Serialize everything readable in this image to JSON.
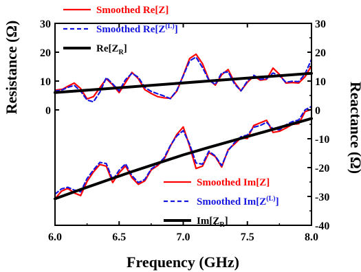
{
  "chart_data": {
    "type": "line",
    "xlabel": "Frequency (GHz)",
    "ylabel_left": "Resistance (Ω)",
    "ylabel_right": "Reactance (Ω)",
    "xlim": [
      6.0,
      8.0
    ],
    "ylim_left": [
      -40,
      30
    ],
    "ylim_right": [
      -40,
      30
    ],
    "xticks": [
      "6.0",
      "6.5",
      "7.0",
      "7.5",
      "8.0"
    ],
    "yticks_left": [
      "30",
      "20",
      "10",
      "0"
    ],
    "yticks_right": [
      "30",
      "20",
      "10",
      "0",
      "-10",
      "-20",
      "-30",
      "-40"
    ],
    "grid": false,
    "legends": [
      {
        "placement": "top-left",
        "entries": [
          {
            "main": "Smoothed  Re[Z]",
            "sub": "",
            "tail": ""
          },
          {
            "main": "Smoothed  Re[Z",
            "sub": "(L)",
            "tail": "]"
          },
          {
            "main": "Re[Z",
            "sub": "R",
            "tail": "]"
          }
        ]
      },
      {
        "placement": "bottom-right",
        "entries": [
          {
            "main": "Smoothed  Im[Z]",
            "sub": "",
            "tail": ""
          },
          {
            "main": "Smoothed  Im[Z",
            "sub": "(L)",
            "tail": "]"
          },
          {
            "main": "Im[Z",
            "sub": "R",
            "tail": "]"
          }
        ]
      }
    ],
    "colors": {
      "smoothed": "#ff0000",
      "smoothed_L": "#1515e0",
      "model": "#000000"
    },
    "series": [
      {
        "name": "Smoothed  Re[Z]",
        "group": "re",
        "style": "solid",
        "color": "#ff0000",
        "x": [
          6.0,
          6.06,
          6.1,
          6.15,
          6.2,
          6.25,
          6.3,
          6.35,
          6.4,
          6.45,
          6.5,
          6.55,
          6.6,
          6.65,
          6.7,
          6.75,
          6.8,
          6.85,
          6.9,
          6.95,
          7.0,
          7.05,
          7.1,
          7.15,
          7.2,
          7.25,
          7.3,
          7.35,
          7.4,
          7.45,
          7.5,
          7.55,
          7.6,
          7.65,
          7.7,
          7.75,
          7.8,
          7.85,
          7.9,
          7.95,
          8.0
        ],
        "y": [
          6.8,
          7.2,
          8.2,
          9.3,
          7.4,
          3.8,
          4.6,
          7.7,
          10.8,
          8.7,
          6.0,
          9.5,
          13.0,
          10.8,
          7.0,
          5.7,
          4.6,
          4.2,
          4.0,
          6.5,
          12.0,
          17.8,
          19.3,
          16.0,
          10.5,
          8.6,
          12.2,
          14.0,
          9.5,
          6.6,
          9.6,
          11.7,
          10.3,
          10.6,
          14.5,
          12.3,
          9.3,
          9.5,
          9.3,
          11.5,
          15.3
        ]
      },
      {
        "name": "Smoothed  Re[Z(L)]",
        "group": "re",
        "style": "dashed",
        "color": "#1515e0",
        "x": [
          6.0,
          6.06,
          6.1,
          6.15,
          6.2,
          6.25,
          6.3,
          6.35,
          6.4,
          6.45,
          6.5,
          6.55,
          6.6,
          6.65,
          6.7,
          6.75,
          6.8,
          6.85,
          6.9,
          6.95,
          7.0,
          7.05,
          7.1,
          7.15,
          7.2,
          7.25,
          7.3,
          7.35,
          7.4,
          7.45,
          7.5,
          7.55,
          7.6,
          7.65,
          7.7,
          7.75,
          7.8,
          7.85,
          7.9,
          7.95,
          8.0
        ],
        "y": [
          6.5,
          7.0,
          7.8,
          8.5,
          6.5,
          3.4,
          2.8,
          6.2,
          11.2,
          9.0,
          6.6,
          10.5,
          12.7,
          11.3,
          7.8,
          6.4,
          5.6,
          4.8,
          3.9,
          6.8,
          11.8,
          17.0,
          18.3,
          14.7,
          10.3,
          8.8,
          12.8,
          13.2,
          9.0,
          6.6,
          10.0,
          12.0,
          10.6,
          10.8,
          12.8,
          11.8,
          9.6,
          9.9,
          9.8,
          12.5,
          17.5
        ]
      },
      {
        "name": "Re[ZR]",
        "group": "re",
        "style": "thick",
        "color": "#000000",
        "x": [
          6.0,
          8.0
        ],
        "y": [
          6.0,
          12.7
        ]
      },
      {
        "name": "Smoothed  Im[Z]",
        "group": "im",
        "style": "solid",
        "color": "#ff0000",
        "x": [
          6.0,
          6.05,
          6.1,
          6.15,
          6.2,
          6.25,
          6.3,
          6.35,
          6.4,
          6.45,
          6.5,
          6.55,
          6.6,
          6.65,
          6.7,
          6.75,
          6.8,
          6.85,
          6.9,
          6.95,
          7.0,
          7.05,
          7.1,
          7.15,
          7.2,
          7.25,
          7.3,
          7.35,
          7.4,
          7.45,
          7.5,
          7.55,
          7.6,
          7.65,
          7.7,
          7.75,
          7.8,
          7.85,
          7.9,
          7.95,
          8.0
        ],
        "y": [
          -30.8,
          -28.2,
          -27.2,
          -28.8,
          -29.7,
          -24.8,
          -21.5,
          -18.9,
          -19.5,
          -25.2,
          -21.8,
          -19.4,
          -23.5,
          -25.8,
          -24.6,
          -20.8,
          -19.3,
          -17.2,
          -12.5,
          -8.5,
          -5.9,
          -12.6,
          -20.3,
          -19.5,
          -14.8,
          -16.2,
          -19.8,
          -13.8,
          -11.8,
          -9.7,
          -9.9,
          -5.4,
          -4.5,
          -3.6,
          -7.8,
          -7.4,
          -6.3,
          -5.0,
          -4.8,
          -0.6,
          0.2
        ]
      },
      {
        "name": "Smoothed  Im[Z(L)]",
        "group": "im",
        "style": "dashed",
        "color": "#1515e0",
        "x": [
          6.0,
          6.05,
          6.1,
          6.15,
          6.2,
          6.25,
          6.3,
          6.35,
          6.4,
          6.45,
          6.5,
          6.55,
          6.6,
          6.65,
          6.7,
          6.75,
          6.8,
          6.85,
          6.9,
          6.95,
          7.0,
          7.05,
          7.1,
          7.15,
          7.2,
          7.25,
          7.3,
          7.35,
          7.4,
          7.45,
          7.5,
          7.55,
          7.6,
          7.65,
          7.7,
          7.75,
          7.8,
          7.85,
          7.9,
          7.95,
          8.0
        ],
        "y": [
          -29.2,
          -27.4,
          -26.8,
          -27.8,
          -28.4,
          -23.8,
          -20.8,
          -18.2,
          -18.6,
          -24.3,
          -20.9,
          -18.7,
          -22.8,
          -25.2,
          -24.1,
          -20.5,
          -18.9,
          -16.7,
          -12.3,
          -9.0,
          -7.2,
          -11.9,
          -18.4,
          -18.8,
          -14.3,
          -16.0,
          -19.3,
          -14.1,
          -11.3,
          -9.3,
          -8.7,
          -6.0,
          -5.4,
          -4.3,
          -6.6,
          -6.9,
          -5.2,
          -4.1,
          -3.5,
          0.0,
          1.2
        ]
      },
      {
        "name": "Im[ZR]",
        "group": "im",
        "style": "thick",
        "color": "#000000",
        "x": [
          6.0,
          6.2,
          6.4,
          6.6,
          6.8,
          7.0,
          7.2,
          7.4,
          7.6,
          7.8,
          8.0
        ],
        "y": [
          -30.8,
          -27.6,
          -24.5,
          -21.4,
          -18.5,
          -15.6,
          -13.0,
          -10.5,
          -8.0,
          -5.5,
          -3.0
        ]
      }
    ]
  }
}
